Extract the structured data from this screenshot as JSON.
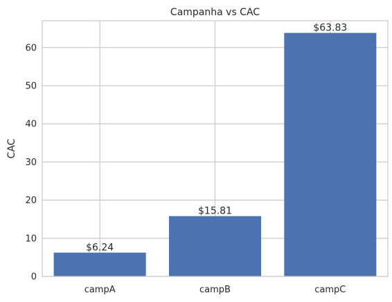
{
  "chart_data": {
    "type": "bar",
    "title": "Campanha vs CAC",
    "xlabel": "",
    "ylabel": "CAC",
    "categories": [
      "campA",
      "campB",
      "campC"
    ],
    "values": [
      6.24,
      15.81,
      63.83
    ],
    "data_labels": [
      "$6.24",
      "$15.81",
      "$63.83"
    ],
    "ylim": [
      0,
      67.02
    ],
    "yticks": [
      0,
      10,
      20,
      30,
      40,
      50,
      60
    ],
    "ytick_labels": [
      "0",
      "10",
      "20",
      "30",
      "40",
      "50",
      "60"
    ],
    "grid": true,
    "bar_color": "#4c72b0",
    "background_color": "#ffffff",
    "grid_color": "#cccccc"
  }
}
